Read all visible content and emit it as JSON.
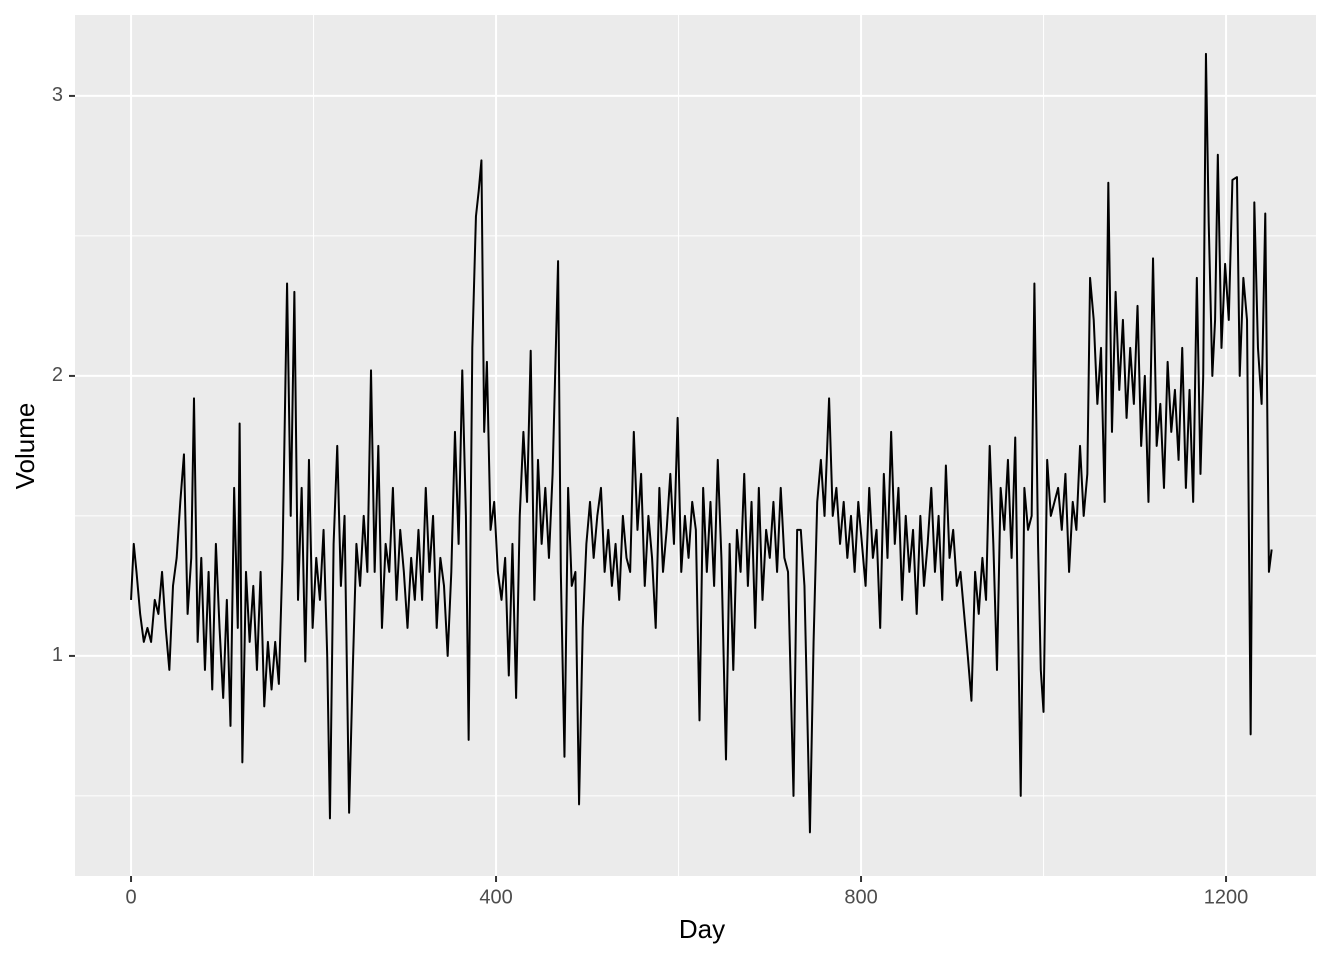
{
  "chart_data": {
    "type": "line",
    "x_label": "Day",
    "y_label": "Volume",
    "color": "#000000",
    "grid": true,
    "xlim": [
      -61.4,
      1298.6
    ],
    "ylim": [
      0.214,
      3.289
    ],
    "xticks": [
      0,
      400,
      800,
      1200
    ],
    "yticks": [
      1,
      2,
      3
    ],
    "x_minor_ticks": [
      200,
      600,
      1000
    ],
    "y_minor_ticks": [
      0.5,
      1.5,
      2.5
    ],
    "x": [
      0,
      3,
      6,
      10,
      14,
      18,
      22,
      26,
      30,
      34,
      38,
      42,
      46,
      50,
      54,
      58,
      62,
      66,
      69,
      73,
      77,
      81,
      85,
      89,
      93,
      97,
      101,
      105,
      109,
      113,
      117,
      119,
      122,
      126,
      130,
      134,
      138,
      142,
      146,
      150,
      154,
      158,
      162,
      166,
      171,
      175,
      179,
      183,
      187,
      191,
      195,
      199,
      203,
      207,
      211,
      215,
      218,
      222,
      226,
      230,
      234,
      239,
      243,
      247,
      251,
      255,
      259,
      263,
      267,
      271,
      275,
      279,
      283,
      287,
      291,
      295,
      299,
      303,
      307,
      311,
      315,
      319,
      323,
      327,
      331,
      335,
      339,
      343,
      347,
      351,
      355,
      359,
      363,
      367,
      370,
      374,
      378,
      381,
      384,
      387,
      390,
      394,
      398,
      402,
      406,
      410,
      414,
      418,
      422,
      426,
      430,
      434,
      438,
      442,
      446,
      450,
      454,
      458,
      462,
      468,
      471,
      475,
      479,
      483,
      487,
      491,
      495,
      499,
      503,
      507,
      511,
      515,
      519,
      523,
      527,
      531,
      535,
      539,
      543,
      547,
      551,
      555,
      559,
      563,
      567,
      571,
      575,
      579,
      583,
      587,
      591,
      595,
      599,
      603,
      607,
      611,
      615,
      619,
      623,
      627,
      631,
      635,
      639,
      643,
      647,
      652,
      656,
      660,
      664,
      668,
      672,
      676,
      680,
      684,
      688,
      692,
      696,
      700,
      704,
      708,
      712,
      716,
      720,
      726,
      730,
      734,
      738,
      744,
      748,
      752,
      756,
      760,
      765,
      769,
      773,
      777,
      781,
      785,
      789,
      793,
      797,
      801,
      805,
      809,
      813,
      817,
      821,
      825,
      829,
      833,
      837,
      841,
      845,
      849,
      853,
      857,
      861,
      865,
      869,
      873,
      877,
      881,
      885,
      889,
      893,
      897,
      901,
      905,
      909,
      913,
      917,
      921,
      925,
      929,
      933,
      937,
      941,
      945,
      949,
      953,
      957,
      961,
      965,
      969,
      975,
      979,
      983,
      987,
      990,
      994,
      997,
      1000,
      1004,
      1008,
      1012,
      1016,
      1020,
      1024,
      1028,
      1032,
      1036,
      1040,
      1044,
      1048,
      1051,
      1055,
      1059,
      1063,
      1067,
      1071,
      1075,
      1079,
      1083,
      1087,
      1091,
      1095,
      1099,
      1103,
      1107,
      1111,
      1115,
      1120,
      1124,
      1128,
      1132,
      1136,
      1140,
      1144,
      1148,
      1152,
      1156,
      1160,
      1164,
      1168,
      1172,
      1175,
      1178,
      1181,
      1185,
      1188,
      1191,
      1195,
      1199,
      1203,
      1207,
      1212,
      1215,
      1219,
      1223,
      1227,
      1231,
      1235,
      1239,
      1243,
      1247,
      1250
    ],
    "values": [
      1.2,
      1.4,
      1.3,
      1.15,
      1.05,
      1.1,
      1.05,
      1.2,
      1.15,
      1.3,
      1.1,
      0.95,
      1.25,
      1.35,
      1.55,
      1.72,
      1.15,
      1.35,
      1.92,
      1.05,
      1.35,
      0.95,
      1.3,
      0.88,
      1.4,
      1.1,
      0.85,
      1.2,
      0.75,
      1.6,
      1.1,
      1.83,
      0.62,
      1.3,
      1.05,
      1.25,
      0.95,
      1.3,
      0.82,
      1.05,
      0.88,
      1.05,
      0.9,
      1.35,
      2.33,
      1.5,
      2.3,
      1.2,
      1.6,
      0.98,
      1.7,
      1.1,
      1.35,
      1.2,
      1.45,
      1.0,
      0.42,
      1.4,
      1.75,
      1.25,
      1.5,
      0.44,
      0.95,
      1.4,
      1.25,
      1.5,
      1.3,
      2.02,
      1.3,
      1.75,
      1.1,
      1.4,
      1.3,
      1.6,
      1.2,
      1.45,
      1.3,
      1.1,
      1.35,
      1.2,
      1.45,
      1.2,
      1.6,
      1.3,
      1.5,
      1.1,
      1.35,
      1.25,
      1.0,
      1.3,
      1.8,
      1.4,
      2.02,
      1.5,
      0.7,
      2.1,
      2.57,
      2.66,
      2.77,
      1.8,
      2.05,
      1.45,
      1.55,
      1.3,
      1.2,
      1.35,
      0.93,
      1.4,
      0.85,
      1.5,
      1.8,
      1.55,
      2.09,
      1.2,
      1.7,
      1.4,
      1.6,
      1.35,
      1.65,
      2.41,
      1.3,
      0.64,
      1.6,
      1.25,
      1.3,
      0.47,
      1.1,
      1.4,
      1.55,
      1.35,
      1.5,
      1.6,
      1.3,
      1.45,
      1.25,
      1.4,
      1.2,
      1.5,
      1.35,
      1.3,
      1.8,
      1.45,
      1.65,
      1.25,
      1.5,
      1.35,
      1.1,
      1.6,
      1.3,
      1.45,
      1.65,
      1.4,
      1.85,
      1.3,
      1.5,
      1.35,
      1.55,
      1.45,
      0.77,
      1.6,
      1.3,
      1.55,
      1.25,
      1.7,
      1.35,
      0.63,
      1.4,
      0.95,
      1.45,
      1.3,
      1.65,
      1.25,
      1.55,
      1.1,
      1.6,
      1.2,
      1.45,
      1.35,
      1.55,
      1.3,
      1.6,
      1.35,
      1.3,
      0.5,
      1.45,
      1.45,
      1.25,
      0.37,
      1.05,
      1.55,
      1.7,
      1.5,
      1.92,
      1.5,
      1.6,
      1.4,
      1.55,
      1.35,
      1.5,
      1.3,
      1.55,
      1.4,
      1.25,
      1.6,
      1.35,
      1.45,
      1.1,
      1.65,
      1.35,
      1.8,
      1.4,
      1.6,
      1.2,
      1.5,
      1.3,
      1.45,
      1.15,
      1.5,
      1.25,
      1.4,
      1.6,
      1.3,
      1.5,
      1.2,
      1.68,
      1.35,
      1.45,
      1.25,
      1.3,
      1.15,
      1.0,
      0.84,
      1.3,
      1.15,
      1.35,
      1.2,
      1.75,
      1.4,
      0.95,
      1.6,
      1.45,
      1.7,
      1.35,
      1.78,
      0.5,
      1.6,
      1.45,
      1.5,
      2.33,
      1.4,
      0.95,
      0.8,
      1.7,
      1.5,
      1.55,
      1.6,
      1.45,
      1.65,
      1.3,
      1.55,
      1.45,
      1.75,
      1.5,
      1.65,
      2.35,
      2.2,
      1.9,
      2.1,
      1.55,
      2.69,
      1.8,
      2.3,
      1.95,
      2.2,
      1.85,
      2.1,
      1.9,
      2.25,
      1.75,
      2.0,
      1.55,
      2.42,
      1.75,
      1.9,
      1.6,
      2.05,
      1.8,
      1.95,
      1.7,
      2.1,
      1.6,
      1.95,
      1.55,
      2.35,
      1.65,
      2.0,
      3.15,
      2.55,
      2.0,
      2.2,
      2.79,
      2.1,
      2.4,
      2.2,
      2.7,
      2.71,
      2.0,
      2.35,
      2.2,
      0.72,
      2.62,
      2.1,
      1.9,
      2.58,
      1.3,
      1.38
    ]
  }
}
